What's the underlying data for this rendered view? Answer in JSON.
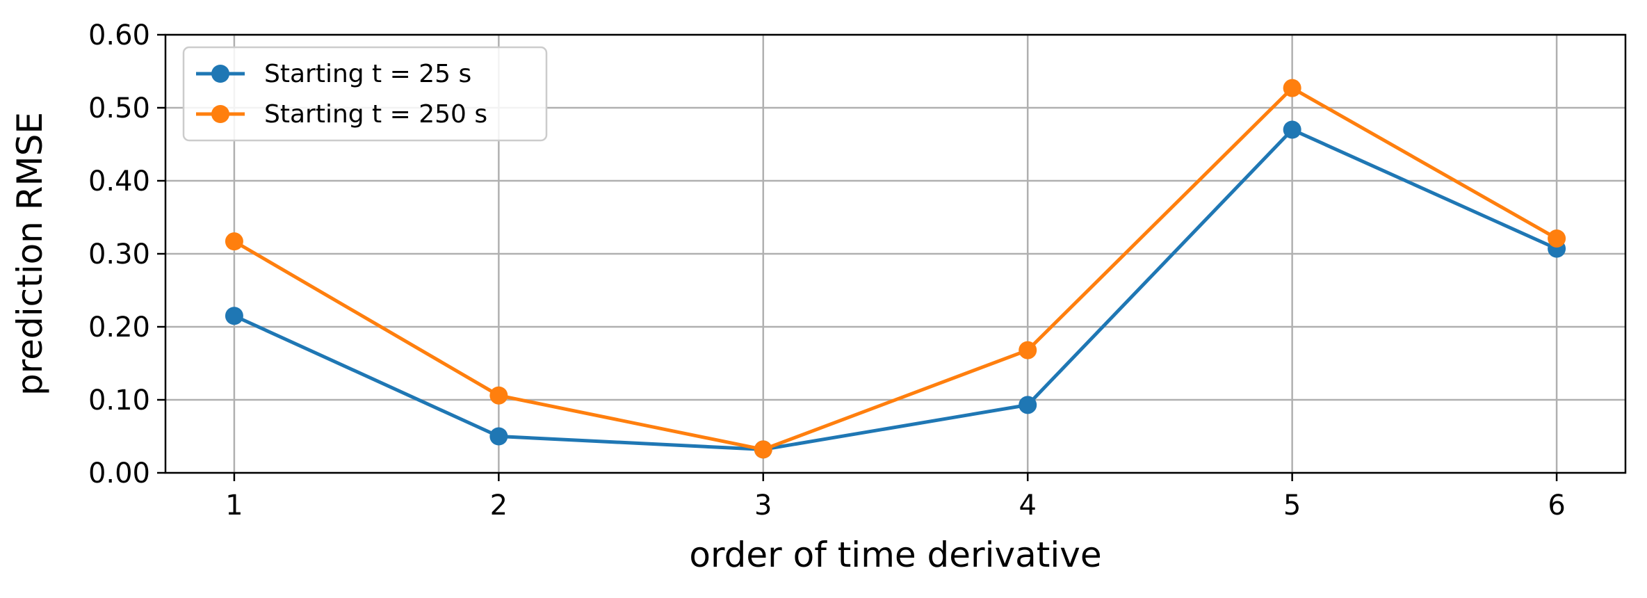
{
  "chart_data": {
    "type": "line",
    "title": "",
    "xlabel": "order of time derivative",
    "ylabel": "prediction RMSE",
    "x": [
      1,
      2,
      3,
      4,
      5,
      6
    ],
    "xticks": [
      "1",
      "2",
      "3",
      "4",
      "5",
      "6"
    ],
    "xlim": [
      0.74,
      6.26
    ],
    "ylim": [
      0,
      0.6
    ],
    "yticks": [
      "0.00",
      "0.10",
      "0.20",
      "0.30",
      "0.40",
      "0.50",
      "0.60"
    ],
    "grid": true,
    "legend_position": "upper left",
    "series": [
      {
        "name": "Starting t = 25 s",
        "color": "#1f77b4",
        "marker": "circle",
        "values": [
          0.215,
          0.05,
          0.032,
          0.093,
          0.47,
          0.307
        ]
      },
      {
        "name": "Starting t = 250 s",
        "color": "#ff7f0e",
        "marker": "circle",
        "values": [
          0.317,
          0.106,
          0.032,
          0.168,
          0.527,
          0.321
        ]
      }
    ]
  }
}
